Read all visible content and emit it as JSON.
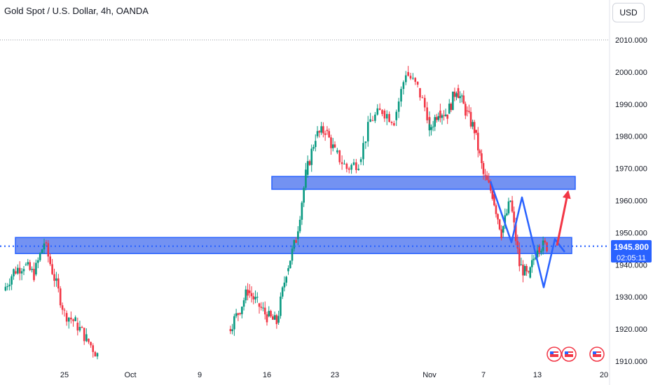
{
  "header": {
    "title": "Gold Spot / U.S. Dollar, 4h, OANDA",
    "unit_button": "USD"
  },
  "price_label": {
    "price": "1945.800",
    "countdown": "02:05:11"
  },
  "colors": {
    "up": "#089981",
    "down": "#f23645",
    "zone_fill": "#5b7ff0",
    "zone_stroke": "#2962ff",
    "pattern_line": "#2962ff",
    "arrow": "#f23645",
    "price_line": "#2962ff",
    "price_label_bg": "#2962ff"
  },
  "chart_data": {
    "type": "candlestick",
    "title": "Gold Spot / U.S. Dollar, 4h, OANDA",
    "currency": "USD",
    "ylim": [
      1910,
      2010
    ],
    "y_ticks": [
      "2010.000",
      "2000.000",
      "1990.000",
      "1980.000",
      "1970.000",
      "1960.000",
      "1950.000",
      "1940.000",
      "1930.000",
      "1920.000",
      "1910.000"
    ],
    "x_ticks": [
      "25",
      "Oct",
      "9",
      "16",
      "23",
      "Nov",
      "7",
      "13",
      "20"
    ],
    "series": [
      {
        "date": "Sep 19",
        "close": 1932
      },
      {
        "date": "Sep 20",
        "close": 1938
      },
      {
        "date": "Sep 21",
        "close": 1940
      },
      {
        "date": "Sep 22",
        "close": 1937
      },
      {
        "date": "Sep 23",
        "close": 1947
      },
      {
        "date": "Sep 25",
        "close": 1925
      },
      {
        "date": "Sep 26",
        "close": 1922
      },
      {
        "date": "Sep 27",
        "close": 1917
      },
      {
        "date": "Sep 28",
        "close": 1912
      },
      {
        "date": "Oct 12",
        "close": 1920
      },
      {
        "date": "Oct 13",
        "close": 1925
      },
      {
        "date": "Oct 14",
        "close": 1932
      },
      {
        "date": "Oct 15",
        "close": 1928
      },
      {
        "date": "Oct 16",
        "close": 1924
      },
      {
        "date": "Oct 17",
        "close": 1922
      },
      {
        "date": "Oct 18",
        "close": 1938
      },
      {
        "date": "Oct 19",
        "close": 1948
      },
      {
        "date": "Oct 20",
        "close": 1968
      },
      {
        "date": "Oct 21",
        "close": 1980
      },
      {
        "date": "Oct 22",
        "close": 1982
      },
      {
        "date": "Oct 23",
        "close": 1975
      },
      {
        "date": "Oct 24",
        "close": 1970
      },
      {
        "date": "Oct 25",
        "close": 1972
      },
      {
        "date": "Oct 26",
        "close": 1985
      },
      {
        "date": "Oct 27",
        "close": 1988
      },
      {
        "date": "Oct 28",
        "close": 1985
      },
      {
        "date": "Oct 29",
        "close": 2000
      },
      {
        "date": "Oct 30",
        "close": 1995
      },
      {
        "date": "Oct 31",
        "close": 1985
      },
      {
        "date": "Nov 1",
        "close": 1982
      },
      {
        "date": "Nov 2",
        "close": 1988
      },
      {
        "date": "Nov 3",
        "close": 1987
      },
      {
        "date": "Nov 4",
        "close": 1995
      },
      {
        "date": "Nov 5",
        "close": 1988
      },
      {
        "date": "Nov 6",
        "close": 1982
      },
      {
        "date": "Nov 7",
        "close": 1968
      },
      {
        "date": "Nov 8",
        "close": 1962
      },
      {
        "date": "Nov 9",
        "close": 1950
      },
      {
        "date": "Nov 10",
        "close": 1960
      },
      {
        "date": "Nov 11",
        "close": 1940
      },
      {
        "date": "Nov 12",
        "close": 1936
      },
      {
        "date": "Nov 13",
        "close": 1946
      },
      {
        "date": "Nov 14",
        "close": 1945.8
      }
    ],
    "last_price": 1945.8,
    "zones": [
      {
        "from": 1963.5,
        "to": 1967.5
      },
      {
        "from": 1943.5,
        "to": 1948.5
      }
    ],
    "pattern": [
      {
        "date": "Nov 7",
        "price": 1966
      },
      {
        "date": "Nov 9",
        "price": 1947
      },
      {
        "date": "Nov 10",
        "price": 1961
      },
      {
        "date": "Nov 13",
        "price": 1933
      },
      {
        "date": "Nov 14",
        "price": 1948
      },
      {
        "date": "Nov 15",
        "price": 1944
      }
    ],
    "grid": false,
    "legend": "none"
  }
}
